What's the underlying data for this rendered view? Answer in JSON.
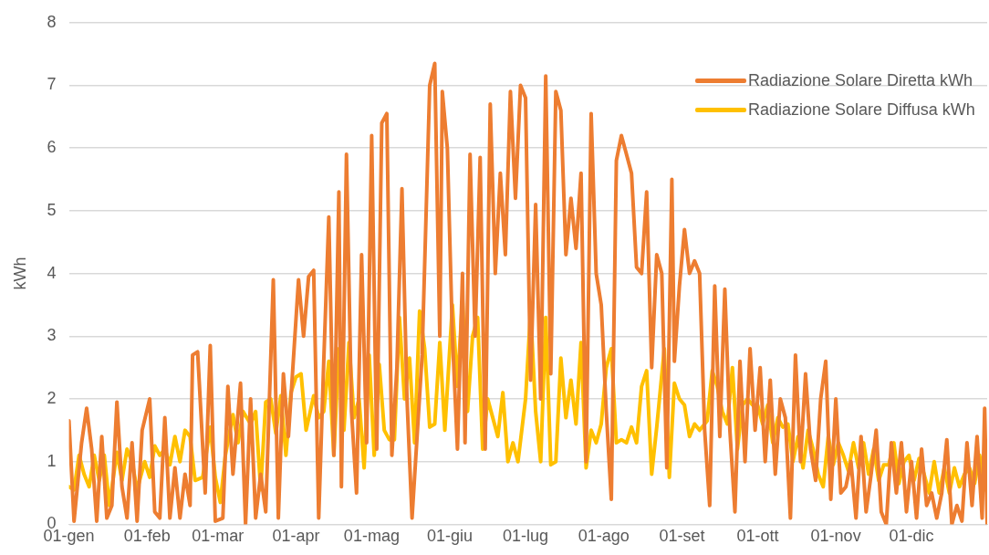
{
  "chart_data": {
    "type": "line",
    "ylabel": "kWh",
    "grid": "y",
    "legend": "top right",
    "marker": "none",
    "line_style": "solid",
    "xlim": [
      "--01-01",
      "--12-31"
    ],
    "ylim": [
      0,
      8
    ],
    "yticks": [
      0,
      1,
      2,
      3,
      4,
      5,
      6,
      7,
      8
    ],
    "xticks": [
      {
        "value": "--01-01",
        "label": "01-gen"
      },
      {
        "value": "--02-01",
        "label": "01-feb"
      },
      {
        "value": "--03-01",
        "label": "01-mar"
      },
      {
        "value": "--04-01",
        "label": "01-apr"
      },
      {
        "value": "--05-01",
        "label": "01-mag"
      },
      {
        "value": "--06-01",
        "label": "01-giu"
      },
      {
        "value": "--07-01",
        "label": "01-lug"
      },
      {
        "value": "--08-01",
        "label": "01-ago"
      },
      {
        "value": "--09-01",
        "label": "01-set"
      },
      {
        "value": "--10-01",
        "label": "01-ott"
      },
      {
        "value": "--11-01",
        "label": "01-nov"
      },
      {
        "value": "--12-01",
        "label": "01-dic"
      }
    ],
    "series": [
      {
        "name": "Radiazione Solare Diretta kWh",
        "color": "#ed7d31",
        "x": [
          "--01-01",
          "--01-03",
          "--01-06",
          "--01-08",
          "--01-10",
          "--01-12",
          "--01-14",
          "--01-16",
          "--01-18",
          "--01-20",
          "--01-22",
          "--01-24",
          "--01-26",
          "--01-28",
          "--01-30",
          "--02-02",
          "--02-04",
          "--02-06",
          "--02-08",
          "--02-10",
          "--02-12",
          "--02-14",
          "--02-16",
          "--02-18",
          "--02-19",
          "--02-21",
          "--02-24",
          "--02-26",
          "--02-28",
          "--03-03",
          "--03-05",
          "--03-07",
          "--03-10",
          "--03-12",
          "--03-14",
          "--03-16",
          "--03-18",
          "--03-20",
          "--03-23",
          "--03-25",
          "--03-27",
          "--03-29",
          "--04-02",
          "--04-04",
          "--04-06",
          "--04-08",
          "--04-10",
          "--04-12",
          "--04-14",
          "--04-16",
          "--04-18",
          "--04-19",
          "--04-21",
          "--04-23",
          "--04-25",
          "--04-27",
          "--04-29",
          "--05-01",
          "--05-03",
          "--05-05",
          "--05-07",
          "--05-09",
          "--05-11",
          "--05-13",
          "--05-15",
          "--05-17",
          "--05-19",
          "--05-21",
          "--05-24",
          "--05-26",
          "--05-28",
          "--05-29",
          "--05-31",
          "--06-02",
          "--06-04",
          "--06-06",
          "--06-07",
          "--06-09",
          "--06-11",
          "--06-13",
          "--06-15",
          "--06-17",
          "--06-19",
          "--06-21",
          "--06-23",
          "--06-25",
          "--06-27",
          "--06-29",
          "--07-01",
          "--07-03",
          "--07-05",
          "--07-07",
          "--07-09",
          "--07-11",
          "--07-13",
          "--07-15",
          "--07-17",
          "--07-19",
          "--07-21",
          "--07-23",
          "--07-25",
          "--07-27",
          "--07-29",
          "--07-31",
          "--08-02",
          "--08-04",
          "--08-06",
          "--08-08",
          "--08-10",
          "--08-12",
          "--08-14",
          "--08-16",
          "--08-18",
          "--08-20",
          "--08-22",
          "--08-24",
          "--08-26",
          "--08-28",
          "--08-29",
          "--08-31",
          "--09-02",
          "--09-04",
          "--09-06",
          "--09-08",
          "--09-10",
          "--09-12",
          "--09-14",
          "--09-16",
          "--09-18",
          "--09-20",
          "--09-22",
          "--09-24",
          "--09-26",
          "--09-28",
          "--09-30",
          "--10-02",
          "--10-04",
          "--10-06",
          "--10-08",
          "--10-10",
          "--10-12",
          "--10-14",
          "--10-16",
          "--10-18",
          "--10-20",
          "--10-22",
          "--10-24",
          "--10-26",
          "--10-28",
          "--10-30",
          "--11-01",
          "--11-03",
          "--11-05",
          "--11-07",
          "--11-09",
          "--11-11",
          "--11-13",
          "--11-15",
          "--11-17",
          "--11-19",
          "--11-21",
          "--11-23",
          "--11-25",
          "--11-27",
          "--11-29",
          "--12-01",
          "--12-03",
          "--12-05",
          "--12-07",
          "--12-09",
          "--12-11",
          "--12-13",
          "--12-15",
          "--12-17",
          "--12-19",
          "--12-21",
          "--12-23",
          "--12-25",
          "--12-27",
          "--12-29",
          "--12-30",
          "--12-31"
        ],
        "values": [
          1.65,
          0.05,
          1.3,
          1.85,
          1.2,
          0.05,
          1.4,
          0.1,
          0.3,
          1.95,
          0.6,
          0.1,
          1.3,
          0.05,
          1.5,
          2.0,
          0.2,
          0.1,
          1.7,
          0.1,
          0.9,
          0.1,
          0.8,
          0.3,
          2.7,
          2.75,
          0.5,
          2.85,
          0.05,
          0.1,
          2.2,
          0.8,
          2.25,
          0.0,
          2.0,
          0.1,
          0.8,
          0.2,
          3.9,
          0.1,
          2.4,
          1.4,
          3.9,
          3.0,
          3.95,
          4.05,
          0.1,
          2.6,
          4.9,
          1.1,
          5.3,
          0.6,
          5.9,
          1.8,
          0.5,
          4.3,
          1.3,
          6.2,
          1.2,
          6.4,
          6.55,
          1.1,
          2.5,
          5.35,
          2.0,
          0.1,
          1.4,
          2.7,
          7.0,
          7.35,
          3.0,
          6.9,
          6.0,
          3.0,
          1.2,
          4.0,
          1.3,
          5.9,
          3.0,
          5.85,
          1.2,
          6.7,
          4.0,
          5.6,
          4.3,
          6.9,
          5.2,
          7.0,
          6.8,
          2.3,
          5.1,
          2.0,
          7.15,
          2.4,
          6.9,
          6.6,
          4.3,
          5.2,
          4.4,
          5.6,
          1.0,
          6.55,
          4.0,
          3.5,
          1.8,
          0.4,
          5.8,
          6.2,
          5.9,
          5.6,
          4.1,
          4.0,
          5.3,
          2.5,
          4.3,
          4.0,
          0.9,
          5.5,
          2.6,
          3.8,
          4.7,
          4.0,
          4.2,
          4.0,
          1.5,
          0.3,
          3.8,
          1.4,
          3.75,
          1.5,
          0.2,
          2.6,
          1.0,
          2.8,
          1.5,
          2.5,
          1.0,
          2.3,
          0.8,
          2.0,
          1.7,
          0.1,
          2.7,
          1.0,
          2.4,
          1.2,
          0.7,
          2.0,
          2.6,
          0.4,
          2.0,
          0.5,
          0.6,
          1.0,
          0.1,
          1.4,
          0.2,
          0.8,
          1.5,
          0.2,
          0.0,
          1.3,
          0.5,
          1.3,
          0.2,
          1.0,
          0.1,
          1.2,
          0.3,
          0.5,
          0.1,
          0.5,
          1.35,
          0.0,
          0.3,
          0.05,
          1.3,
          0.3,
          1.4,
          0.1,
          1.85,
          0.0
        ]
      },
      {
        "name": "Radiazione Solare Diffusa kWh",
        "color": "#ffc000",
        "x": [
          "--01-01",
          "--01-03",
          "--01-05",
          "--01-07",
          "--01-09",
          "--01-11",
          "--01-13",
          "--01-15",
          "--01-17",
          "--01-20",
          "--01-22",
          "--01-24",
          "--01-26",
          "--01-28",
          "--01-31",
          "--02-02",
          "--02-04",
          "--02-06",
          "--02-08",
          "--02-10",
          "--02-12",
          "--02-14",
          "--02-16",
          "--02-18",
          "--02-20",
          "--02-23",
          "--02-26",
          "--02-28",
          "--03-02",
          "--03-04",
          "--03-07",
          "--03-09",
          "--03-11",
          "--03-14",
          "--03-16",
          "--03-18",
          "--03-20",
          "--03-22",
          "--03-24",
          "--03-26",
          "--03-28",
          "--03-30",
          "--04-01",
          "--04-03",
          "--04-05",
          "--04-08",
          "--04-10",
          "--04-12",
          "--04-14",
          "--04-16",
          "--04-18",
          "--04-20",
          "--04-22",
          "--04-24",
          "--04-26",
          "--04-28",
          "--04-30",
          "--05-02",
          "--05-04",
          "--05-06",
          "--05-08",
          "--05-10",
          "--05-12",
          "--05-14",
          "--05-16",
          "--05-18",
          "--05-20",
          "--05-22",
          "--05-24",
          "--05-26",
          "--05-28",
          "--05-30",
          "--06-02",
          "--06-04",
          "--06-06",
          "--06-08",
          "--06-10",
          "--06-12",
          "--06-14",
          "--06-16",
          "--06-18",
          "--06-20",
          "--06-22",
          "--06-24",
          "--06-26",
          "--06-28",
          "--07-01",
          "--07-03",
          "--07-05",
          "--07-07",
          "--07-09",
          "--07-11",
          "--07-13",
          "--07-15",
          "--07-17",
          "--07-19",
          "--07-21",
          "--07-23",
          "--07-25",
          "--07-27",
          "--07-29",
          "--07-31",
          "--08-02",
          "--08-04",
          "--08-06",
          "--08-08",
          "--08-10",
          "--08-12",
          "--08-14",
          "--08-16",
          "--08-18",
          "--08-20",
          "--08-22",
          "--08-25",
          "--08-27",
          "--08-29",
          "--08-31",
          "--09-02",
          "--09-04",
          "--09-06",
          "--09-08",
          "--09-11",
          "--09-13",
          "--09-15",
          "--09-17",
          "--09-19",
          "--09-21",
          "--09-23",
          "--09-25",
          "--09-27",
          "--09-29",
          "--10-01",
          "--10-03",
          "--10-05",
          "--10-07",
          "--10-09",
          "--10-11",
          "--10-13",
          "--10-15",
          "--10-17",
          "--10-19",
          "--10-21",
          "--10-23",
          "--10-25",
          "--10-27",
          "--10-29",
          "--10-31",
          "--11-02",
          "--11-04",
          "--11-06",
          "--11-08",
          "--11-10",
          "--11-12",
          "--11-14",
          "--11-16",
          "--11-18",
          "--11-20",
          "--11-22",
          "--11-24",
          "--11-26",
          "--11-28",
          "--11-30",
          "--12-02",
          "--12-04",
          "--12-06",
          "--12-08",
          "--12-10",
          "--12-12",
          "--12-14",
          "--12-16",
          "--12-18",
          "--12-20",
          "--12-22",
          "--12-24",
          "--12-26",
          "--12-28",
          "--12-30",
          "--12-31"
        ],
        "values": [
          0.6,
          0.55,
          1.1,
          0.8,
          0.6,
          1.1,
          0.7,
          1.1,
          0.3,
          1.15,
          0.7,
          1.2,
          1.0,
          0.55,
          1.0,
          0.75,
          1.25,
          1.1,
          1.2,
          0.95,
          1.4,
          1.0,
          1.5,
          1.4,
          0.7,
          0.75,
          1.55,
          0.75,
          0.35,
          1.1,
          1.75,
          1.3,
          1.8,
          1.6,
          1.8,
          0.55,
          1.95,
          2.0,
          1.45,
          2.05,
          1.1,
          2.1,
          2.35,
          2.4,
          1.5,
          2.05,
          1.7,
          1.8,
          2.6,
          1.1,
          2.8,
          1.5,
          2.9,
          1.7,
          2.0,
          0.9,
          2.7,
          1.1,
          2.55,
          1.5,
          1.35,
          1.35,
          3.3,
          2.0,
          2.65,
          1.3,
          3.4,
          2.8,
          1.55,
          1.6,
          2.9,
          1.5,
          3.5,
          2.2,
          3.6,
          1.8,
          3.0,
          3.3,
          1.2,
          2.0,
          1.7,
          1.4,
          2.1,
          1.0,
          1.3,
          1.0,
          2.0,
          3.4,
          1.8,
          1.0,
          3.3,
          0.95,
          1.0,
          2.65,
          1.7,
          2.3,
          1.6,
          2.9,
          0.9,
          1.5,
          1.3,
          1.6,
          2.5,
          2.8,
          1.3,
          1.35,
          1.3,
          1.55,
          1.3,
          2.2,
          2.45,
          0.8,
          1.55,
          2.8,
          0.75,
          2.25,
          2.0,
          1.9,
          1.4,
          1.6,
          1.5,
          1.65,
          2.45,
          2.2,
          1.8,
          1.6,
          2.5,
          1.2,
          1.9,
          2.0,
          1.9,
          1.9,
          1.6,
          1.9,
          1.3,
          1.7,
          1.55,
          1.6,
          1.0,
          1.4,
          0.9,
          1.5,
          1.2,
          0.8,
          0.6,
          1.4,
          0.95,
          1.3,
          1.1,
          0.85,
          1.3,
          0.9,
          1.3,
          0.8,
          1.2,
          0.7,
          0.95,
          0.95,
          1.3,
          0.65,
          1.0,
          1.1,
          0.7,
          1.05,
          0.8,
          0.5,
          1.0,
          0.5,
          0.9,
          0.5,
          0.9,
          0.6,
          0.8,
          0.9,
          0.65,
          1.1,
          0.55,
          1.05
        ]
      }
    ]
  }
}
